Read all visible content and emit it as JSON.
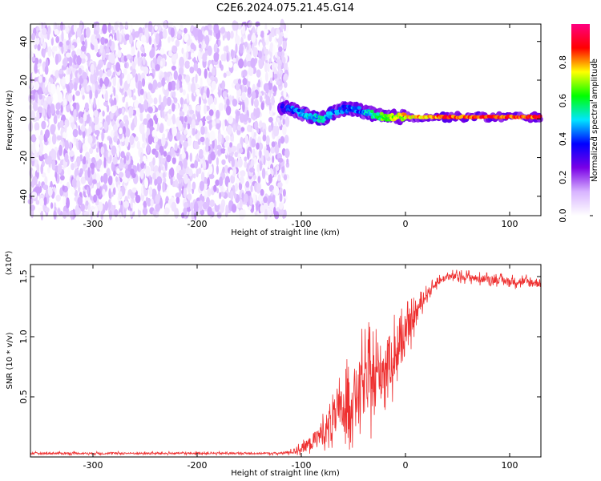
{
  "title": "C2E6.2024.075.21.45.G14",
  "chart_data": [
    {
      "type": "heatmap",
      "xlabel": "Height of straight line (km)",
      "ylabel": "Frequency (Hz)",
      "xlim": [
        -360,
        130
      ],
      "ylim": [
        -50,
        49
      ],
      "xticks": [
        -300,
        -200,
        -100,
        0,
        100
      ],
      "xtick_labels": [
        "-300",
        "-200",
        "-100",
        "0",
        "100"
      ],
      "yticks": [
        -40,
        -20,
        0,
        20,
        40
      ],
      "ytick_labels": [
        "-40",
        "-20",
        "0",
        "20",
        "40"
      ],
      "colorbar": {
        "label": "Normalized spectral amplitude",
        "range": [
          0,
          1
        ],
        "ticks": [
          0.0,
          0.2,
          0.4,
          0.6,
          0.8
        ],
        "tick_labels": [
          "0.0",
          "0.2",
          "0.4",
          "0.6",
          "0.8"
        ],
        "colors": [
          "#ffffff",
          "#d8b4ff",
          "#7a00e6",
          "#0000ff",
          "#00e5ff",
          "#00ff00",
          "#ffff00",
          "#ff0000",
          "#ff0080"
        ]
      },
      "regions": [
        {
          "x_range": [
            -360,
            -113
          ],
          "freq_range": [
            -50,
            49
          ],
          "amplitude_range": [
            0.0,
            0.15
          ],
          "description": "broadband low-amplitude noise"
        },
        {
          "x_range": [
            -113,
            130
          ],
          "freq_range": [
            -50,
            49
          ],
          "amplitude_range": [
            0.0,
            0.0
          ],
          "description": "empty"
        }
      ],
      "ridge": {
        "x": [
          -120,
          -110,
          -100,
          -90,
          -80,
          -70,
          -60,
          -50,
          -40,
          -30,
          -20,
          -10,
          0,
          20,
          40,
          60,
          80,
          100,
          120,
          130
        ],
        "freq": [
          6,
          5,
          3,
          1,
          0,
          3,
          5,
          5,
          4,
          2,
          1,
          1,
          1,
          1,
          1,
          1,
          1,
          1,
          1,
          1
        ],
        "amplitude": [
          0.3,
          0.4,
          0.45,
          0.5,
          0.5,
          0.45,
          0.4,
          0.4,
          0.45,
          0.55,
          0.65,
          0.7,
          0.75,
          0.8,
          0.85,
          0.85,
          0.85,
          0.85,
          0.85,
          0.85
        ]
      }
    },
    {
      "type": "line",
      "xlabel": "Height of straight line (km)",
      "ylabel": "SNR (10 * v/v)",
      "y_multiplier": "(x10⁴)",
      "xlim": [
        -360,
        130
      ],
      "ylim": [
        0,
        16000
      ],
      "xticks": [
        -300,
        -200,
        -100,
        0,
        100
      ],
      "xtick_labels": [
        "-300",
        "-200",
        "-100",
        "0",
        "100"
      ],
      "yticks": [
        5000,
        10000,
        15000
      ],
      "ytick_labels": [
        "0.5",
        "1.0",
        "1.5"
      ],
      "series": [
        {
          "color": "#ee3030",
          "x": [
            -360,
            -300,
            -250,
            -200,
            -150,
            -120,
            -110,
            -100,
            -90,
            -80,
            -70,
            -60,
            -50,
            -40,
            -30,
            -20,
            -10,
            0,
            10,
            20,
            30,
            40,
            50,
            60,
            70,
            80,
            90,
            100,
            110,
            120,
            130
          ],
          "y": [
            300,
            300,
            300,
            300,
            300,
            300,
            400,
            700,
            1200,
            2000,
            3000,
            4000,
            5000,
            6000,
            6500,
            7500,
            8500,
            10000,
            12000,
            13500,
            14500,
            15000,
            15000,
            15000,
            14800,
            14800,
            14700,
            14600,
            14600,
            14500,
            14500
          ],
          "spread": [
            150,
            150,
            150,
            150,
            150,
            150,
            300,
            700,
            1200,
            2000,
            3000,
            4000,
            4500,
            5000,
            5000,
            4500,
            4000,
            3000,
            1500,
            800,
            600,
            600,
            600,
            600,
            600,
            600,
            600,
            600,
            700,
            800,
            800
          ]
        }
      ]
    }
  ]
}
